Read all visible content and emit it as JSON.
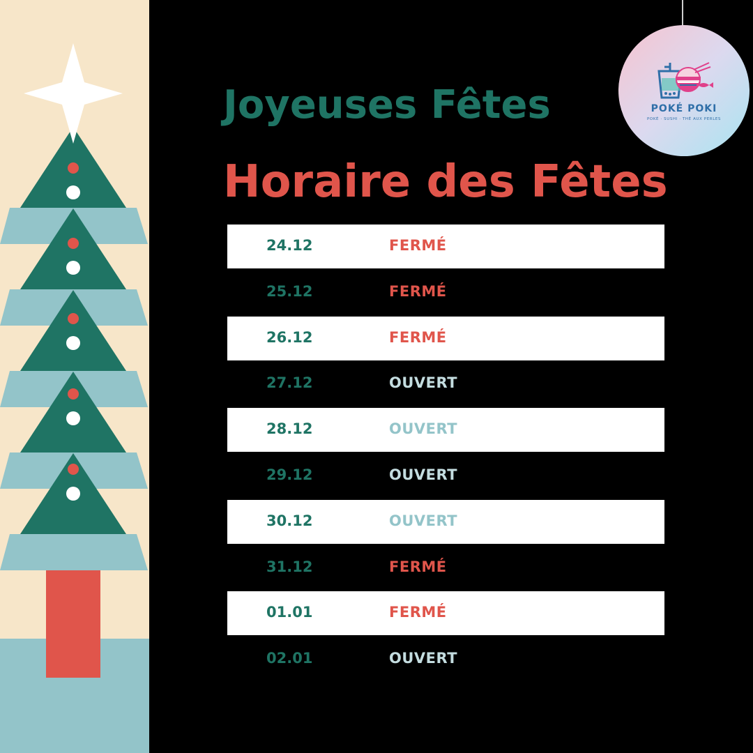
{
  "greeting": "Joyeuses Fêtes",
  "title": "Horaire des Fêtes",
  "logo": {
    "name": "POKÉ POKI",
    "tagline": "POKÉ · SUSHI · THÉ AUX PERLES",
    "icon": "bubble-tea-and-poke-bowl-icon"
  },
  "decoration": {
    "tree_icon": "christmas-tree-icon",
    "star_icon": "star-icon",
    "ornament_icon": "hanging-ornament-icon"
  },
  "colors": {
    "background": "#000000",
    "panel_cream": "#f7e6c9",
    "tree_green": "#1f7464",
    "tree_light_blue": "#93c4c9",
    "accent_red": "#e0554b",
    "row_white": "#ffffff",
    "status_closed": "#e0554b",
    "status_open_dark_row": "#c4dde0",
    "status_open_white_row": "#93c4c9"
  },
  "schedule": [
    {
      "date": "24.12",
      "status": "FERMÉ"
    },
    {
      "date": "25.12",
      "status": "FERMÉ"
    },
    {
      "date": "26.12",
      "status": "FERMÉ"
    },
    {
      "date": "27.12",
      "status": "OUVERT"
    },
    {
      "date": "28.12",
      "status": "OUVERT"
    },
    {
      "date": "29.12",
      "status": "OUVERT"
    },
    {
      "date": "30.12",
      "status": "OUVERT"
    },
    {
      "date": "31.12",
      "status": "FERMÉ"
    },
    {
      "date": "01.01",
      "status": "FERMÉ"
    },
    {
      "date": "02.01",
      "status": "OUVERT"
    }
  ]
}
